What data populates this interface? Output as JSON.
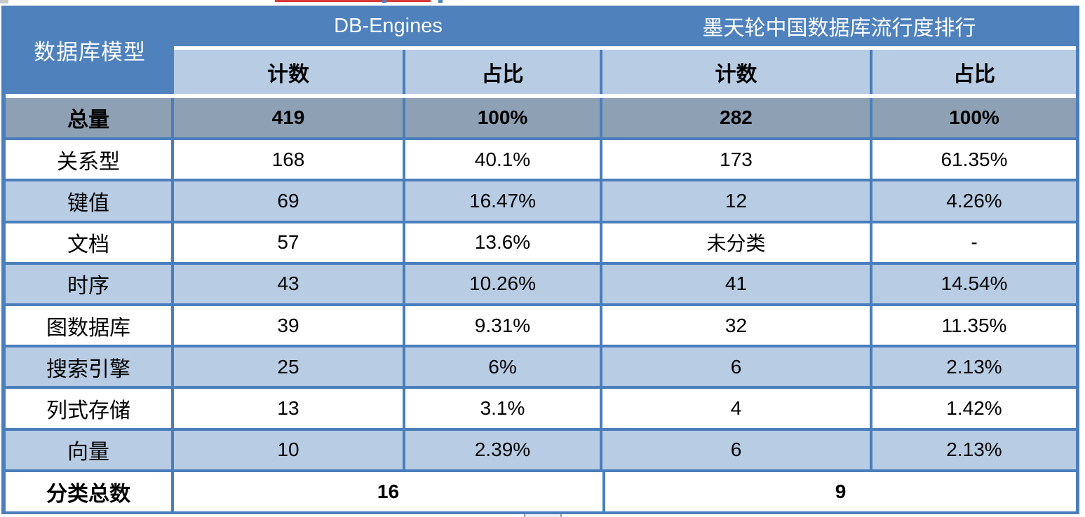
{
  "header": {
    "corner_label": "数据库模型",
    "group1_label": "DB-Engines",
    "group2_label": "墨天轮中国数据库流行度排行",
    "sub": [
      "计数",
      "占比",
      "计数",
      "占比"
    ]
  },
  "rows": [
    {
      "label": "总量",
      "cells": [
        "419",
        "100%",
        "282",
        "100%"
      ]
    },
    {
      "label": "关系型",
      "cells": [
        "168",
        "40.1%",
        "173",
        "61.35%"
      ]
    },
    {
      "label": "键值",
      "cells": [
        "69",
        "16.47%",
        "12",
        "4.26%"
      ]
    },
    {
      "label": "文档",
      "cells": [
        "57",
        "13.6%",
        "未分类",
        "-"
      ]
    },
    {
      "label": "时序",
      "cells": [
        "43",
        "10.26%",
        "41",
        "14.54%"
      ]
    },
    {
      "label": "图数据库",
      "cells": [
        "39",
        "9.31%",
        "32",
        "11.35%"
      ]
    },
    {
      "label": "搜索引擎",
      "cells": [
        "25",
        "6%",
        "6",
        "2.13%"
      ]
    },
    {
      "label": "列式存储",
      "cells": [
        "13",
        "3.1%",
        "4",
        "1.42%"
      ]
    },
    {
      "label": "向量",
      "cells": [
        "10",
        "2.39%",
        "6",
        "2.13%"
      ]
    }
  ],
  "footer": {
    "label": "分类总数",
    "group1_value": "16",
    "group2_value": "9"
  },
  "colors": {
    "header_blue": "#4f81bd",
    "light_blue": "#b8cce4",
    "total_gray": "#8ea0b4",
    "border_blue": "#4a7ebc",
    "artifact_red": "#d83a3a"
  },
  "chart_data": {
    "type": "table",
    "columns": [
      "数据库模型",
      "DB-Engines 计数",
      "DB-Engines 占比",
      "墨天轮中国数据库流行度排行 计数",
      "墨天轮中国数据库流行度排行 占比"
    ],
    "rows": [
      [
        "总量",
        "419",
        "100%",
        "282",
        "100%"
      ],
      [
        "关系型",
        "168",
        "40.1%",
        "173",
        "61.35%"
      ],
      [
        "键值",
        "69",
        "16.47%",
        "12",
        "4.26%"
      ],
      [
        "文档",
        "57",
        "13.6%",
        "未分类",
        "-"
      ],
      [
        "时序",
        "43",
        "10.26%",
        "41",
        "14.54%"
      ],
      [
        "图数据库",
        "39",
        "9.31%",
        "32",
        "11.35%"
      ],
      [
        "搜索引擎",
        "25",
        "6%",
        "6",
        "2.13%"
      ],
      [
        "列式存储",
        "13",
        "3.1%",
        "4",
        "1.42%"
      ],
      [
        "向量",
        "10",
        "2.39%",
        "6",
        "2.13%"
      ],
      [
        "分类总数",
        "16",
        "16",
        "9",
        "9"
      ]
    ],
    "legend_position": "none",
    "grid": true
  }
}
